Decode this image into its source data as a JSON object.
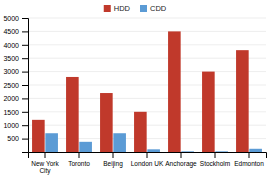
{
  "chart_data": {
    "type": "bar",
    "categories": [
      "New York\nCity",
      "Toronto",
      "Beijing",
      "London UK",
      "Anchorage",
      "Stockholm",
      "Edmonton"
    ],
    "series": [
      {
        "name": "HDD",
        "color": "#c0392b",
        "values": [
          1200,
          2800,
          2200,
          1500,
          4500,
          3000,
          3800
        ]
      },
      {
        "name": "CDD",
        "color": "#5b9bd5",
        "values": [
          700,
          380,
          700,
          100,
          25,
          25,
          120
        ]
      }
    ],
    "ylim": [
      0,
      5000
    ],
    "yticks": [
      500,
      1000,
      1500,
      2000,
      2500,
      3000,
      3500,
      4000,
      4500,
      5000
    ],
    "grid": true,
    "legend": "top"
  }
}
